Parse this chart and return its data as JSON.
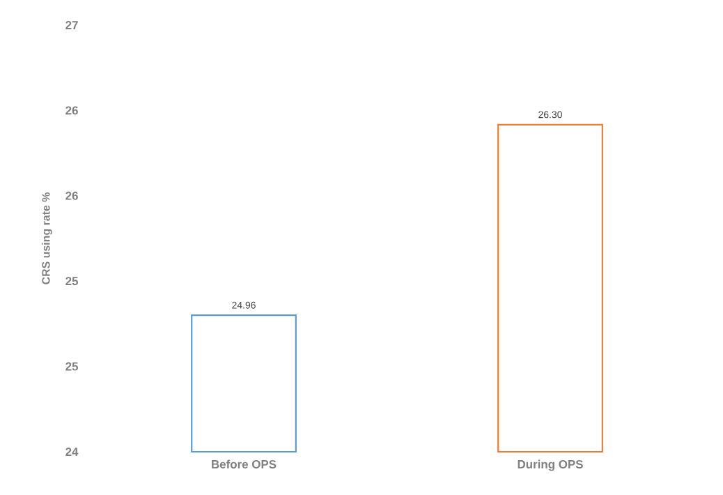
{
  "chart_data": {
    "type": "bar",
    "ylabel": "CRS using rate %",
    "categories": [
      "Before OPS",
      "During OPS"
    ],
    "values": [
      24.96,
      26.3
    ],
    "value_labels": [
      "24.96",
      "26.30"
    ],
    "colors": [
      "#5b9bd5",
      "#ed7d31"
    ],
    "ylim": [
      24,
      27
    ],
    "yticks": [
      {
        "value": 24,
        "label": "24"
      },
      {
        "value": 24.6,
        "label": "25"
      },
      {
        "value": 25.2,
        "label": "25"
      },
      {
        "value": 25.8,
        "label": "26"
      },
      {
        "value": 26.4,
        "label": "26"
      },
      {
        "value": 27,
        "label": "27"
      }
    ],
    "grid": false
  }
}
